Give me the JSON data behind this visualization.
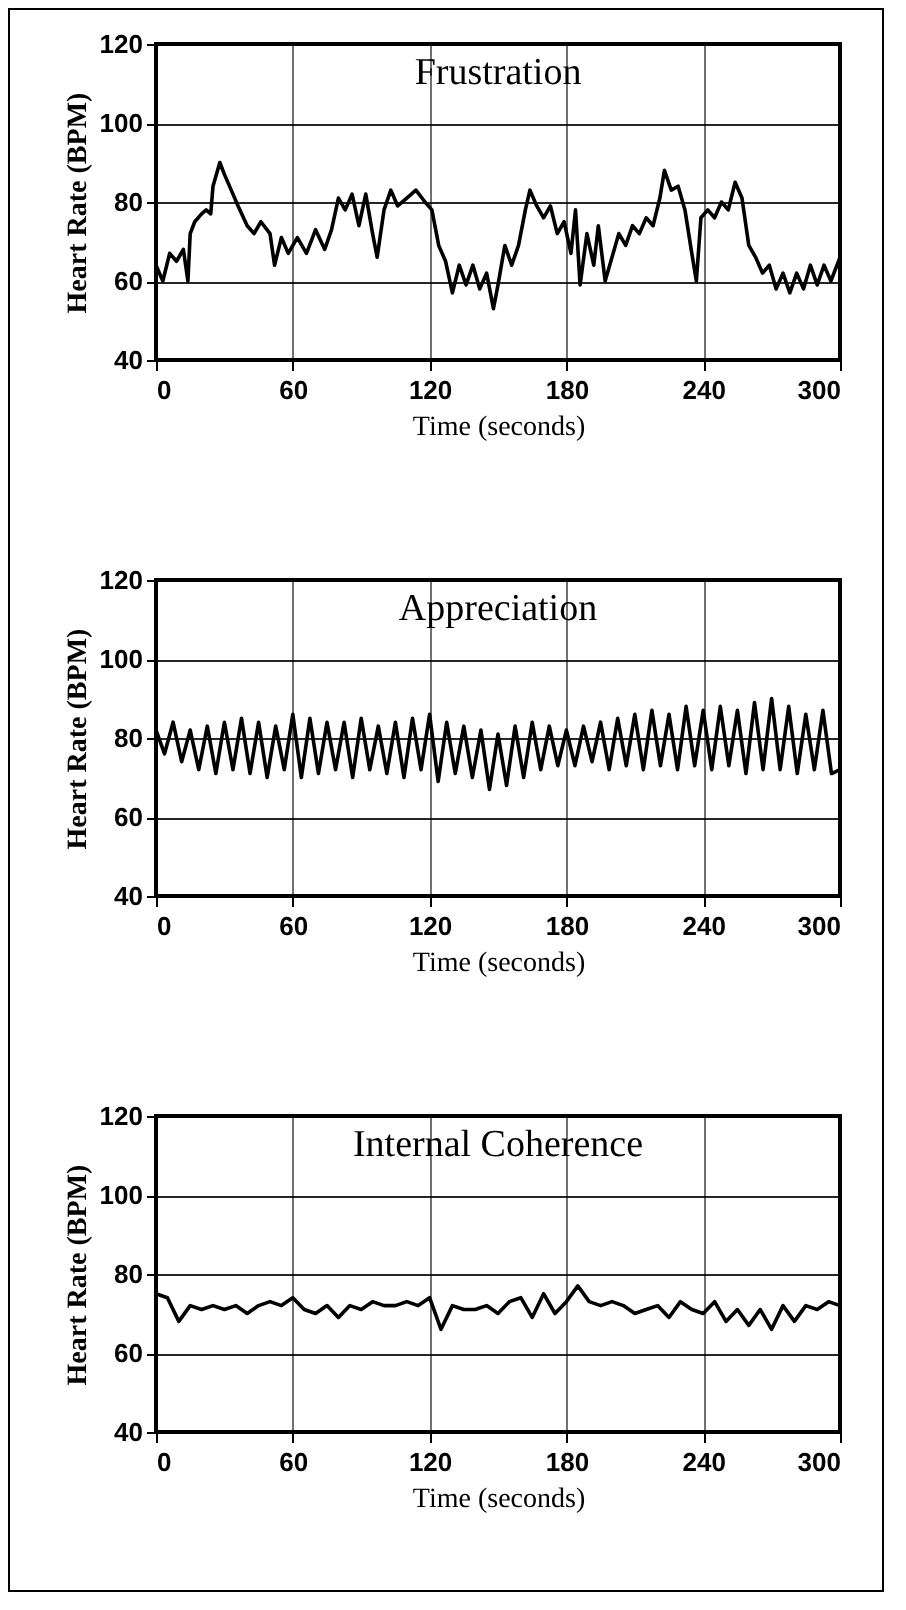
{
  "chart_data": [
    {
      "type": "line",
      "title": "Frustration",
      "xlabel": "Time (seconds)",
      "ylabel": "Heart Rate (BPM)",
      "xlim": [
        0,
        300
      ],
      "xticks": [
        0,
        60,
        120,
        180,
        240,
        300
      ],
      "ylim": [
        40,
        120
      ],
      "yticks": [
        40,
        60,
        80,
        100,
        120
      ],
      "grid": true,
      "x": [
        0,
        3,
        6,
        9,
        12,
        14,
        15,
        17,
        20,
        22,
        24,
        25,
        28,
        30,
        33,
        36,
        40,
        43,
        46,
        50,
        52,
        55,
        58,
        62,
        66,
        70,
        74,
        77,
        80,
        83,
        86,
        89,
        92,
        95,
        97,
        100,
        103,
        106,
        110,
        114,
        118,
        121,
        124,
        127,
        130,
        133,
        136,
        139,
        142,
        145,
        148,
        150,
        153,
        156,
        159,
        162,
        164,
        167,
        170,
        173,
        176,
        179,
        182,
        184,
        186,
        189,
        192,
        194,
        197,
        200,
        203,
        206,
        209,
        212,
        215,
        218,
        221,
        223,
        226,
        229,
        232,
        235,
        237,
        239,
        242,
        245,
        248,
        251,
        254,
        257,
        260,
        263,
        266,
        269,
        272,
        275,
        278,
        281,
        284,
        287,
        290,
        293,
        296,
        300
      ],
      "series": [
        {
          "color": "#000000",
          "values": [
            64,
            60,
            67,
            65,
            68,
            60,
            72,
            75,
            77,
            78,
            77,
            84,
            90,
            87,
            83,
            79,
            74,
            72,
            75,
            72,
            64,
            71,
            67,
            71,
            67,
            73,
            68,
            73,
            81,
            78,
            82,
            74,
            82,
            72,
            66,
            78,
            83,
            79,
            81,
            83,
            80,
            78,
            69,
            65,
            57,
            64,
            59,
            64,
            58,
            62,
            53,
            59,
            69,
            64,
            69,
            78,
            83,
            79,
            76,
            79,
            72,
            75,
            67,
            78,
            59,
            72,
            64,
            74,
            60,
            66,
            72,
            69,
            74,
            72,
            76,
            74,
            81,
            88,
            83,
            84,
            78,
            67,
            60,
            76,
            78,
            76,
            80,
            78,
            85,
            81,
            69,
            66,
            62,
            64,
            58,
            62,
            57,
            62,
            58,
            64,
            59,
            64,
            60,
            66
          ]
        }
      ]
    },
    {
      "type": "line",
      "title": "Appreciation",
      "xlabel": "Time (seconds)",
      "ylabel": "Heart Rate (BPM)",
      "xlim": [
        0,
        300
      ],
      "xticks": [
        0,
        60,
        120,
        180,
        240,
        300
      ],
      "ylim": [
        40,
        120
      ],
      "yticks": [
        40,
        60,
        80,
        100,
        120
      ],
      "grid": true,
      "x": [
        0,
        3.75,
        7.5,
        11.25,
        15,
        18.75,
        22.5,
        26.25,
        30,
        33.75,
        37.5,
        41.25,
        45,
        48.75,
        52.5,
        56.25,
        60,
        63.75,
        67.5,
        71.25,
        75,
        78.75,
        82.5,
        86.25,
        90,
        93.75,
        97.5,
        101.25,
        105,
        108.75,
        112.5,
        116.25,
        120,
        123.75,
        127.5,
        131.25,
        135,
        138.75,
        142.5,
        146.25,
        150,
        153.75,
        157.5,
        161.25,
        165,
        168.75,
        172.5,
        176.25,
        180,
        183.75,
        187.5,
        191.25,
        195,
        198.75,
        202.5,
        206.25,
        210,
        213.75,
        217.5,
        221.25,
        225,
        228.75,
        232.5,
        236.25,
        240,
        243.75,
        247.5,
        251.25,
        255,
        258.75,
        262.5,
        266.25,
        270,
        273.75,
        277.5,
        281.25,
        285,
        288.75,
        292.5,
        296.25,
        300
      ],
      "series": [
        {
          "color": "#000000",
          "values": [
            82,
            76,
            84,
            74,
            82,
            72,
            83,
            71,
            84,
            72,
            85,
            71,
            84,
            70,
            83,
            72,
            86,
            70,
            85,
            71,
            84,
            72,
            84,
            70,
            85,
            72,
            83,
            71,
            84,
            70,
            85,
            72,
            86,
            69,
            84,
            71,
            83,
            70,
            82,
            67,
            81,
            68,
            83,
            70,
            84,
            72,
            83,
            73,
            82,
            73,
            83,
            74,
            84,
            72,
            85,
            73,
            86,
            72,
            87,
            73,
            86,
            72,
            88,
            73,
            87,
            72,
            88,
            73,
            87,
            71,
            89,
            72,
            90,
            72,
            88,
            71,
            86,
            72,
            87,
            71,
            72
          ]
        }
      ]
    },
    {
      "type": "line",
      "title": "Internal Coherence",
      "xlabel": "Time (seconds)",
      "ylabel": "Heart Rate (BPM)",
      "xlim": [
        0,
        300
      ],
      "xticks": [
        0,
        60,
        120,
        180,
        240,
        300
      ],
      "ylim": [
        40,
        120
      ],
      "yticks": [
        40,
        60,
        80,
        100,
        120
      ],
      "grid": true,
      "x": [
        0,
        5,
        10,
        15,
        20,
        25,
        30,
        35,
        40,
        45,
        50,
        55,
        60,
        65,
        70,
        75,
        80,
        85,
        90,
        95,
        100,
        105,
        110,
        115,
        120,
        125,
        130,
        135,
        140,
        145,
        150,
        155,
        160,
        165,
        170,
        175,
        180,
        185,
        190,
        195,
        200,
        205,
        210,
        215,
        220,
        225,
        230,
        235,
        240,
        245,
        250,
        255,
        260,
        265,
        270,
        275,
        280,
        285,
        290,
        295,
        300
      ],
      "series": [
        {
          "color": "#000000",
          "values": [
            75,
            74,
            68,
            72,
            71,
            72,
            71,
            72,
            70,
            72,
            73,
            72,
            74,
            71,
            70,
            72,
            69,
            72,
            71,
            73,
            72,
            72,
            73,
            72,
            74,
            66,
            72,
            71,
            71,
            72,
            70,
            73,
            74,
            69,
            75,
            70,
            73,
            77,
            73,
            72,
            73,
            72,
            70,
            71,
            72,
            69,
            73,
            71,
            70,
            73,
            68,
            71,
            67,
            71,
            66,
            72,
            68,
            72,
            71,
            73,
            72
          ]
        }
      ]
    }
  ]
}
